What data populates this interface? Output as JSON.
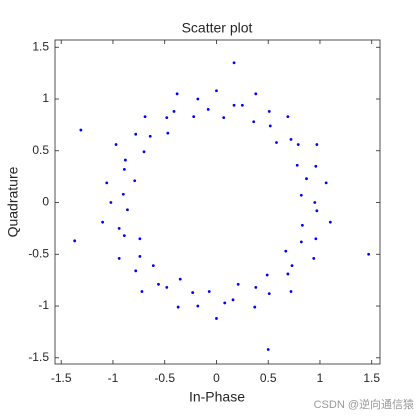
{
  "chart_data": {
    "type": "scatter",
    "title": "Scatter plot",
    "x_label": "In-Phase",
    "y_label": "Quadrature",
    "x": [
      0.95,
      0.82,
      1.06,
      0.87,
      0.96,
      0.78,
      0.97,
      0.79,
      0.72,
      0.58,
      0.69,
      0.52,
      0.51,
      0.36,
      0.38,
      0.25,
      0.17,
      0.07,
      0,
      -0.08,
      -0.18,
      -0.22,
      -0.38,
      -0.41,
      -0.48,
      -0.47,
      -0.69,
      -0.64,
      -0.78,
      -0.7,
      -0.97,
      -0.88,
      -0.89,
      -0.79,
      -1.06,
      -0.9,
      -1.02,
      -0.86,
      -1.1,
      -0.94,
      -0.89,
      -0.74,
      -0.94,
      -0.74,
      -0.78,
      -0.61,
      -0.72,
      -0.56,
      -0.48,
      -0.35,
      -0.37,
      -0.23,
      -0.18,
      -0.07,
      0,
      0.08,
      0.16,
      0.21,
      0.37,
      0.38,
      0.51,
      0.49,
      0.72,
      0.69,
      0.73,
      0.67,
      0.94,
      0.82,
      0.96,
      0.83,
      1.1,
      0.97,
      -1.37,
      1.47,
      -1.31,
      0.5,
      0.17
    ],
    "values": [
      0,
      0.07,
      0.19,
      0.23,
      0.35,
      0.36,
      0.56,
      0.56,
      0.61,
      0.58,
      0.83,
      0.74,
      0.88,
      0.78,
      1.05,
      0.94,
      0.94,
      0.82,
      1.08,
      0.9,
      1,
      0.83,
      1.05,
      0.88,
      0.82,
      0.67,
      0.83,
      0.64,
      0.66,
      0.49,
      0.56,
      0.41,
      0.32,
      0.21,
      0.19,
      0.08,
      0,
      -0.07,
      -0.19,
      -0.25,
      -0.32,
      -0.35,
      -0.54,
      -0.52,
      -0.66,
      -0.61,
      -0.86,
      -0.79,
      -0.82,
      -0.74,
      -1.01,
      -0.87,
      -1,
      -0.86,
      -1.12,
      -0.97,
      -0.94,
      -0.79,
      -1.01,
      -0.82,
      -0.88,
      -0.7,
      -0.86,
      -0.69,
      -0.61,
      -0.47,
      -0.54,
      -0.38,
      -0.35,
      -0.22,
      -0.19,
      -0.08,
      -0.37,
      -0.5,
      0.7,
      -1.42,
      1.35
    ],
    "color": "#0000ff",
    "xlim": [
      -1.56,
      1.58
    ],
    "ylim": [
      -1.56,
      1.57
    ],
    "xticks": [
      -1.5,
      -1,
      -0.5,
      0,
      0.5,
      1,
      1.5
    ],
    "yticks": [
      -1.5,
      -1,
      -0.5,
      0,
      0.5,
      1,
      1.5
    ],
    "watermark": "CSDN @逆向通信猿"
  }
}
